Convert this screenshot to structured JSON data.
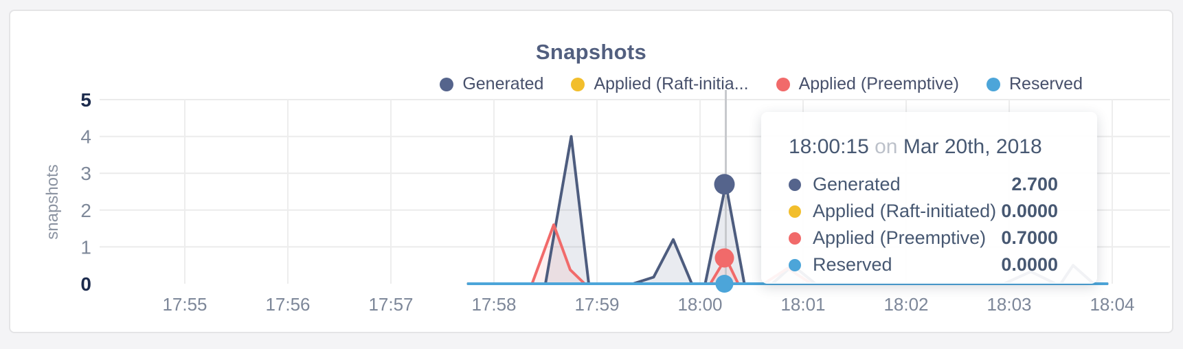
{
  "title": "Snapshots",
  "y_axis_title": "snapshots",
  "legend": [
    {
      "label": "Generated",
      "color": "#55648c"
    },
    {
      "label": "Applied (Raft-initia...",
      "color": "#f2be2c"
    },
    {
      "label": "Applied (Preemptive)",
      "color": "#f16a6a"
    },
    {
      "label": "Reserved",
      "color": "#4ca5d9"
    }
  ],
  "tooltip": {
    "time": "18:00:15",
    "connector": "on",
    "date": "Mar 20th, 2018",
    "rows": [
      {
        "label": "Generated",
        "value": "2.700",
        "color": "#55648c"
      },
      {
        "label": "Applied (Raft-initiated)",
        "value": "0.0000",
        "color": "#f2be2c"
      },
      {
        "label": "Applied (Preemptive)",
        "value": "0.7000",
        "color": "#f16a6a"
      },
      {
        "label": "Reserved",
        "value": "0.0000",
        "color": "#4ca5d9"
      }
    ]
  },
  "chart_data": {
    "type": "area",
    "title": "Snapshots",
    "ylabel": "snapshots",
    "ylim": [
      0,
      5
    ],
    "grid": true,
    "legend_position": "top-right",
    "x_unit": "minutes after 17:55",
    "x_ticks": [
      {
        "t": 0,
        "label": "17:55"
      },
      {
        "t": 1,
        "label": "17:56"
      },
      {
        "t": 2,
        "label": "17:57"
      },
      {
        "t": 3,
        "label": "17:58"
      },
      {
        "t": 4,
        "label": "17:59"
      },
      {
        "t": 5,
        "label": "18:00"
      },
      {
        "t": 6,
        "label": "18:01"
      },
      {
        "t": 7,
        "label": "18:02"
      },
      {
        "t": 8,
        "label": "18:03"
      },
      {
        "t": 9,
        "label": "18:04"
      }
    ],
    "y_ticks": [
      {
        "v": 0,
        "label": "0",
        "bold": true
      },
      {
        "v": 1,
        "label": "1",
        "bold": false
      },
      {
        "v": 2,
        "label": "2",
        "bold": false
      },
      {
        "v": 3,
        "label": "3",
        "bold": false
      },
      {
        "v": 4,
        "label": "4",
        "bold": false
      },
      {
        "v": 5,
        "label": "5",
        "bold": true
      }
    ],
    "y_gridlines": [
      1,
      2,
      3,
      4,
      5
    ],
    "series": [
      {
        "name": "Generated",
        "color": "#55648c",
        "line_color": "#4d5c7e",
        "fill": true,
        "fill_opacity": 0.13,
        "points": [
          [
            2.75,
            0
          ],
          [
            3.5,
            0
          ],
          [
            3.75,
            4.0
          ],
          [
            3.92,
            0
          ],
          [
            4.35,
            0
          ],
          [
            4.55,
            0.18
          ],
          [
            4.74,
            1.2
          ],
          [
            4.92,
            0
          ],
          [
            5.05,
            0
          ],
          [
            5.25,
            2.7
          ],
          [
            5.43,
            0
          ],
          [
            5.7,
            0
          ],
          [
            5.9,
            0.5
          ],
          [
            6.12,
            0
          ],
          [
            7.95,
            0
          ],
          [
            8.21,
            0.33
          ],
          [
            8.45,
            0
          ],
          [
            8.5,
            0
          ],
          [
            8.62,
            0.5
          ],
          [
            8.82,
            0
          ],
          [
            8.95,
            0
          ]
        ]
      },
      {
        "name": "Applied (Raft-initiated)",
        "color": "#f2be2c",
        "line_color": "#f2be2c",
        "fill": false,
        "fill_opacity": 0,
        "points": [
          [
            2.75,
            0
          ],
          [
            8.95,
            0
          ]
        ]
      },
      {
        "name": "Applied (Preemptive)",
        "color": "#f16a6a",
        "line_color": "#f16a6a",
        "fill": true,
        "fill_opacity": 0.1,
        "points": [
          [
            2.75,
            0
          ],
          [
            3.37,
            0
          ],
          [
            3.58,
            1.6
          ],
          [
            3.74,
            0.38
          ],
          [
            3.88,
            0
          ],
          [
            5.1,
            0
          ],
          [
            5.25,
            0.7
          ],
          [
            5.37,
            0
          ],
          [
            5.62,
            0
          ],
          [
            5.85,
            0.42
          ],
          [
            6.08,
            0
          ],
          [
            8.95,
            0
          ]
        ]
      },
      {
        "name": "Reserved",
        "color": "#4ca5d9",
        "line_color": "#4ca5d9",
        "fill": false,
        "fill_opacity": 0,
        "points": [
          [
            2.75,
            0
          ],
          [
            8.95,
            0
          ]
        ]
      }
    ],
    "highlight": {
      "t": 5.25,
      "time": "18:00:15",
      "date": "Mar 20th, 2018",
      "dots": [
        {
          "series": "Generated",
          "value": 2.7,
          "color": "#55648c",
          "r": 15
        },
        {
          "series": "Applied (Raft-initiated)",
          "value": 0.0,
          "color": "#f2be2c",
          "r": 12
        },
        {
          "series": "Applied (Preemptive)",
          "value": 0.7,
          "color": "#f16a6a",
          "r": 14
        },
        {
          "series": "Reserved",
          "value": 0.0,
          "color": "#4ca5d9",
          "r": 13
        }
      ]
    }
  }
}
